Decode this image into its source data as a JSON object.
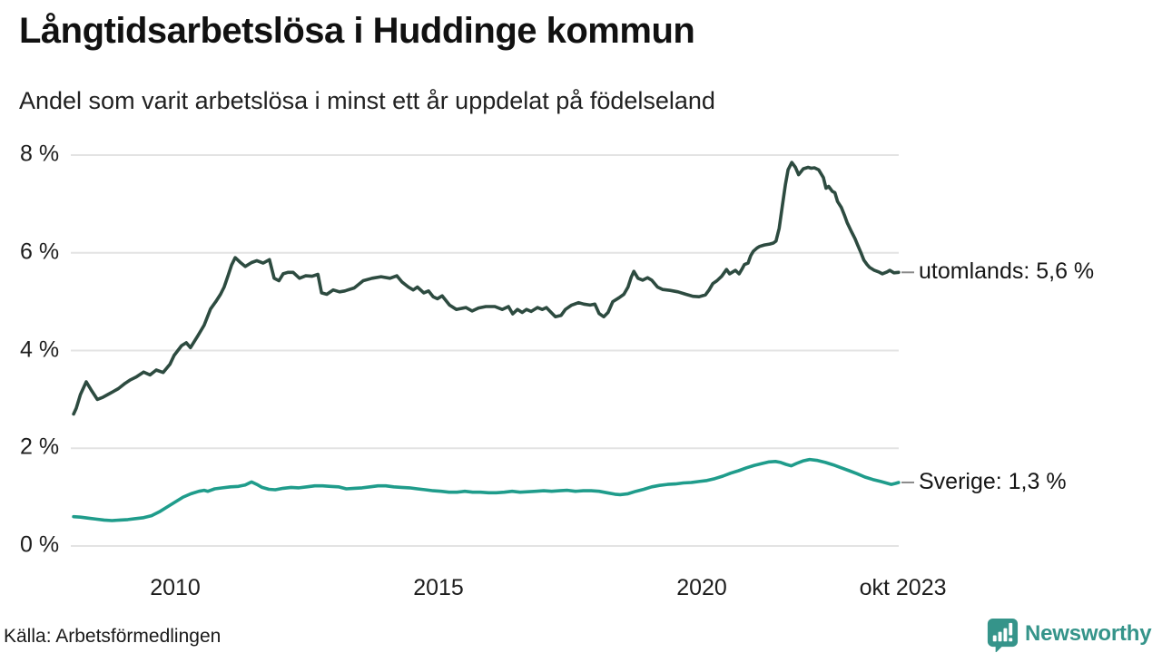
{
  "header": {
    "title": "Långtidsarbetslösa i Huddinge kommun",
    "subtitle": "Andel som varit arbetslösa i minst ett år uppdelat på födelseland"
  },
  "footer": {
    "source": "Källa: Arbetsförmedlingen",
    "logo_text": "Newsworthy"
  },
  "colors": {
    "utomlands": "#2d4b40",
    "sverige": "#1f9c8b",
    "grid": "#e3e3e3",
    "end_dash": "#8a8a8a",
    "logo": "#35948a",
    "logo_glyph": "#ffffff"
  },
  "chart_data": {
    "type": "line",
    "title": "Långtidsarbetslösa i Huddinge kommun",
    "subtitle": "Andel som varit arbetslösa i minst ett år uppdelat på födelseland",
    "grid": true,
    "legend_position": "right-end-labels",
    "x_axis": {
      "range": [
        2008.05,
        2023.83
      ],
      "ticks": [
        {
          "pos": 2010,
          "label": "2010"
        },
        {
          "pos": 2015,
          "label": "2015"
        },
        {
          "pos": 2020,
          "label": "2020"
        },
        {
          "pos": 2023.82,
          "label": "okt 2023"
        }
      ]
    },
    "y_axis": {
      "min": 0,
      "max": 8,
      "unit": "%",
      "ticks": [
        {
          "value": 0,
          "label": "0 %"
        },
        {
          "value": 2,
          "label": "2 %"
        },
        {
          "value": 4,
          "label": "4 %"
        },
        {
          "value": 6,
          "label": "6 %"
        },
        {
          "value": 8,
          "label": "8 %"
        }
      ]
    },
    "series": [
      {
        "name": "utomlands",
        "end_label": "utomlands: 5,6 %",
        "last_value": 5.6,
        "color_key": "utomlands",
        "points": [
          [
            2008.07,
            2.7
          ],
          [
            2008.12,
            2.82
          ],
          [
            2008.2,
            3.1
          ],
          [
            2008.31,
            3.36
          ],
          [
            2008.4,
            3.2
          ],
          [
            2008.52,
            3.0
          ],
          [
            2008.62,
            3.04
          ],
          [
            2008.72,
            3.1
          ],
          [
            2008.82,
            3.16
          ],
          [
            2008.92,
            3.22
          ],
          [
            2009.05,
            3.33
          ],
          [
            2009.15,
            3.4
          ],
          [
            2009.26,
            3.46
          ],
          [
            2009.4,
            3.56
          ],
          [
            2009.52,
            3.5
          ],
          [
            2009.64,
            3.6
          ],
          [
            2009.77,
            3.55
          ],
          [
            2009.9,
            3.72
          ],
          [
            2009.98,
            3.9
          ],
          [
            2010.12,
            4.1
          ],
          [
            2010.21,
            4.16
          ],
          [
            2010.29,
            4.06
          ],
          [
            2010.43,
            4.3
          ],
          [
            2010.55,
            4.52
          ],
          [
            2010.67,
            4.85
          ],
          [
            2010.77,
            5.0
          ],
          [
            2010.86,
            5.15
          ],
          [
            2010.93,
            5.3
          ],
          [
            2011.0,
            5.52
          ],
          [
            2011.07,
            5.75
          ],
          [
            2011.14,
            5.9
          ],
          [
            2011.24,
            5.8
          ],
          [
            2011.33,
            5.72
          ],
          [
            2011.45,
            5.8
          ],
          [
            2011.55,
            5.84
          ],
          [
            2011.67,
            5.79
          ],
          [
            2011.79,
            5.86
          ],
          [
            2011.88,
            5.48
          ],
          [
            2011.97,
            5.43
          ],
          [
            2012.05,
            5.57
          ],
          [
            2012.14,
            5.6
          ],
          [
            2012.24,
            5.6
          ],
          [
            2012.36,
            5.48
          ],
          [
            2012.48,
            5.53
          ],
          [
            2012.6,
            5.52
          ],
          [
            2012.71,
            5.56
          ],
          [
            2012.78,
            5.18
          ],
          [
            2012.88,
            5.15
          ],
          [
            2013.0,
            5.24
          ],
          [
            2013.12,
            5.2
          ],
          [
            2013.22,
            5.22
          ],
          [
            2013.4,
            5.28
          ],
          [
            2013.57,
            5.43
          ],
          [
            2013.74,
            5.48
          ],
          [
            2013.91,
            5.51
          ],
          [
            2014.08,
            5.48
          ],
          [
            2014.21,
            5.53
          ],
          [
            2014.31,
            5.4
          ],
          [
            2014.43,
            5.3
          ],
          [
            2014.52,
            5.24
          ],
          [
            2014.6,
            5.3
          ],
          [
            2014.72,
            5.18
          ],
          [
            2014.81,
            5.22
          ],
          [
            2014.9,
            5.1
          ],
          [
            2014.98,
            5.06
          ],
          [
            2015.07,
            5.12
          ],
          [
            2015.21,
            4.93
          ],
          [
            2015.34,
            4.84
          ],
          [
            2015.52,
            4.88
          ],
          [
            2015.64,
            4.81
          ],
          [
            2015.76,
            4.87
          ],
          [
            2015.9,
            4.9
          ],
          [
            2016.07,
            4.9
          ],
          [
            2016.21,
            4.84
          ],
          [
            2016.33,
            4.9
          ],
          [
            2016.41,
            4.75
          ],
          [
            2016.5,
            4.84
          ],
          [
            2016.59,
            4.78
          ],
          [
            2016.67,
            4.84
          ],
          [
            2016.76,
            4.8
          ],
          [
            2016.88,
            4.88
          ],
          [
            2016.97,
            4.84
          ],
          [
            2017.05,
            4.88
          ],
          [
            2017.14,
            4.78
          ],
          [
            2017.22,
            4.69
          ],
          [
            2017.33,
            4.72
          ],
          [
            2017.41,
            4.84
          ],
          [
            2017.53,
            4.93
          ],
          [
            2017.66,
            4.98
          ],
          [
            2017.76,
            4.95
          ],
          [
            2017.88,
            4.93
          ],
          [
            2017.97,
            4.95
          ],
          [
            2018.05,
            4.76
          ],
          [
            2018.14,
            4.69
          ],
          [
            2018.22,
            4.78
          ],
          [
            2018.31,
            5.0
          ],
          [
            2018.43,
            5.08
          ],
          [
            2018.52,
            5.15
          ],
          [
            2018.6,
            5.3
          ],
          [
            2018.66,
            5.5
          ],
          [
            2018.71,
            5.62
          ],
          [
            2018.79,
            5.48
          ],
          [
            2018.88,
            5.44
          ],
          [
            2018.97,
            5.49
          ],
          [
            2019.05,
            5.44
          ],
          [
            2019.16,
            5.3
          ],
          [
            2019.26,
            5.25
          ],
          [
            2019.4,
            5.23
          ],
          [
            2019.55,
            5.2
          ],
          [
            2019.7,
            5.15
          ],
          [
            2019.83,
            5.11
          ],
          [
            2019.95,
            5.1
          ],
          [
            2020.07,
            5.14
          ],
          [
            2020.14,
            5.24
          ],
          [
            2020.21,
            5.37
          ],
          [
            2020.29,
            5.43
          ],
          [
            2020.38,
            5.52
          ],
          [
            2020.47,
            5.66
          ],
          [
            2020.53,
            5.57
          ],
          [
            2020.59,
            5.61
          ],
          [
            2020.64,
            5.64
          ],
          [
            2020.71,
            5.57
          ],
          [
            2020.76,
            5.66
          ],
          [
            2020.81,
            5.76
          ],
          [
            2020.88,
            5.79
          ],
          [
            2020.93,
            5.94
          ],
          [
            2020.98,
            6.03
          ],
          [
            2021.05,
            6.1
          ],
          [
            2021.1,
            6.13
          ],
          [
            2021.19,
            6.16
          ],
          [
            2021.29,
            6.18
          ],
          [
            2021.36,
            6.2
          ],
          [
            2021.41,
            6.24
          ],
          [
            2021.47,
            6.5
          ],
          [
            2021.53,
            6.95
          ],
          [
            2021.59,
            7.4
          ],
          [
            2021.64,
            7.7
          ],
          [
            2021.71,
            7.85
          ],
          [
            2021.78,
            7.75
          ],
          [
            2021.84,
            7.6
          ],
          [
            2021.93,
            7.72
          ],
          [
            2022.02,
            7.75
          ],
          [
            2022.08,
            7.73
          ],
          [
            2022.14,
            7.74
          ],
          [
            2022.22,
            7.7
          ],
          [
            2022.31,
            7.54
          ],
          [
            2022.36,
            7.32
          ],
          [
            2022.41,
            7.36
          ],
          [
            2022.48,
            7.26
          ],
          [
            2022.53,
            7.23
          ],
          [
            2022.58,
            7.05
          ],
          [
            2022.65,
            6.93
          ],
          [
            2022.71,
            6.77
          ],
          [
            2022.76,
            6.62
          ],
          [
            2022.84,
            6.44
          ],
          [
            2022.91,
            6.29
          ],
          [
            2022.96,
            6.16
          ],
          [
            2023.02,
            6.01
          ],
          [
            2023.08,
            5.85
          ],
          [
            2023.14,
            5.76
          ],
          [
            2023.19,
            5.7
          ],
          [
            2023.28,
            5.64
          ],
          [
            2023.36,
            5.61
          ],
          [
            2023.43,
            5.57
          ],
          [
            2023.52,
            5.61
          ],
          [
            2023.57,
            5.64
          ],
          [
            2023.65,
            5.59
          ],
          [
            2023.74,
            5.6
          ]
        ]
      },
      {
        "name": "Sverige",
        "end_label": "Sverige: 1,3 %",
        "last_value": 1.3,
        "color_key": "sverige",
        "points": [
          [
            2008.07,
            0.6
          ],
          [
            2008.2,
            0.59
          ],
          [
            2008.35,
            0.57
          ],
          [
            2008.5,
            0.55
          ],
          [
            2008.65,
            0.53
          ],
          [
            2008.8,
            0.52
          ],
          [
            2008.95,
            0.53
          ],
          [
            2009.1,
            0.54
          ],
          [
            2009.25,
            0.56
          ],
          [
            2009.4,
            0.58
          ],
          [
            2009.55,
            0.62
          ],
          [
            2009.7,
            0.7
          ],
          [
            2009.85,
            0.8
          ],
          [
            2010.0,
            0.9
          ],
          [
            2010.15,
            1.0
          ],
          [
            2010.3,
            1.07
          ],
          [
            2010.45,
            1.12
          ],
          [
            2010.55,
            1.14
          ],
          [
            2010.62,
            1.12
          ],
          [
            2010.75,
            1.17
          ],
          [
            2010.9,
            1.19
          ],
          [
            2011.05,
            1.21
          ],
          [
            2011.2,
            1.22
          ],
          [
            2011.33,
            1.25
          ],
          [
            2011.45,
            1.31
          ],
          [
            2011.55,
            1.26
          ],
          [
            2011.65,
            1.2
          ],
          [
            2011.78,
            1.16
          ],
          [
            2011.9,
            1.15
          ],
          [
            2012.05,
            1.18
          ],
          [
            2012.2,
            1.2
          ],
          [
            2012.35,
            1.19
          ],
          [
            2012.5,
            1.21
          ],
          [
            2012.65,
            1.23
          ],
          [
            2012.8,
            1.23
          ],
          [
            2012.95,
            1.22
          ],
          [
            2013.1,
            1.21
          ],
          [
            2013.25,
            1.17
          ],
          [
            2013.4,
            1.18
          ],
          [
            2013.55,
            1.19
          ],
          [
            2013.7,
            1.21
          ],
          [
            2013.85,
            1.23
          ],
          [
            2014.0,
            1.23
          ],
          [
            2014.15,
            1.21
          ],
          [
            2014.3,
            1.2
          ],
          [
            2014.45,
            1.19
          ],
          [
            2014.6,
            1.17
          ],
          [
            2014.75,
            1.15
          ],
          [
            2014.9,
            1.13
          ],
          [
            2015.05,
            1.12
          ],
          [
            2015.2,
            1.1
          ],
          [
            2015.35,
            1.1
          ],
          [
            2015.5,
            1.12
          ],
          [
            2015.65,
            1.1
          ],
          [
            2015.8,
            1.1
          ],
          [
            2015.95,
            1.09
          ],
          [
            2016.1,
            1.09
          ],
          [
            2016.25,
            1.1
          ],
          [
            2016.4,
            1.12
          ],
          [
            2016.55,
            1.1
          ],
          [
            2016.7,
            1.11
          ],
          [
            2016.85,
            1.12
          ],
          [
            2017.0,
            1.13
          ],
          [
            2017.15,
            1.12
          ],
          [
            2017.3,
            1.13
          ],
          [
            2017.45,
            1.14
          ],
          [
            2017.6,
            1.12
          ],
          [
            2017.75,
            1.13
          ],
          [
            2017.9,
            1.13
          ],
          [
            2018.05,
            1.12
          ],
          [
            2018.2,
            1.09
          ],
          [
            2018.35,
            1.06
          ],
          [
            2018.45,
            1.05
          ],
          [
            2018.6,
            1.07
          ],
          [
            2018.75,
            1.12
          ],
          [
            2018.9,
            1.16
          ],
          [
            2019.05,
            1.21
          ],
          [
            2019.2,
            1.24
          ],
          [
            2019.35,
            1.26
          ],
          [
            2019.5,
            1.27
          ],
          [
            2019.65,
            1.29
          ],
          [
            2019.8,
            1.3
          ],
          [
            2019.95,
            1.32
          ],
          [
            2020.1,
            1.34
          ],
          [
            2020.25,
            1.38
          ],
          [
            2020.4,
            1.43
          ],
          [
            2020.55,
            1.49
          ],
          [
            2020.7,
            1.54
          ],
          [
            2020.85,
            1.6
          ],
          [
            2021.0,
            1.65
          ],
          [
            2021.15,
            1.69
          ],
          [
            2021.28,
            1.72
          ],
          [
            2021.4,
            1.73
          ],
          [
            2021.5,
            1.71
          ],
          [
            2021.6,
            1.67
          ],
          [
            2021.7,
            1.64
          ],
          [
            2021.8,
            1.69
          ],
          [
            2021.92,
            1.74
          ],
          [
            2022.05,
            1.77
          ],
          [
            2022.2,
            1.75
          ],
          [
            2022.35,
            1.71
          ],
          [
            2022.5,
            1.66
          ],
          [
            2022.65,
            1.6
          ],
          [
            2022.8,
            1.54
          ],
          [
            2022.95,
            1.48
          ],
          [
            2023.1,
            1.41
          ],
          [
            2023.25,
            1.36
          ],
          [
            2023.4,
            1.32
          ],
          [
            2023.5,
            1.29
          ],
          [
            2023.6,
            1.26
          ],
          [
            2023.68,
            1.28
          ],
          [
            2023.74,
            1.3
          ]
        ]
      }
    ]
  }
}
